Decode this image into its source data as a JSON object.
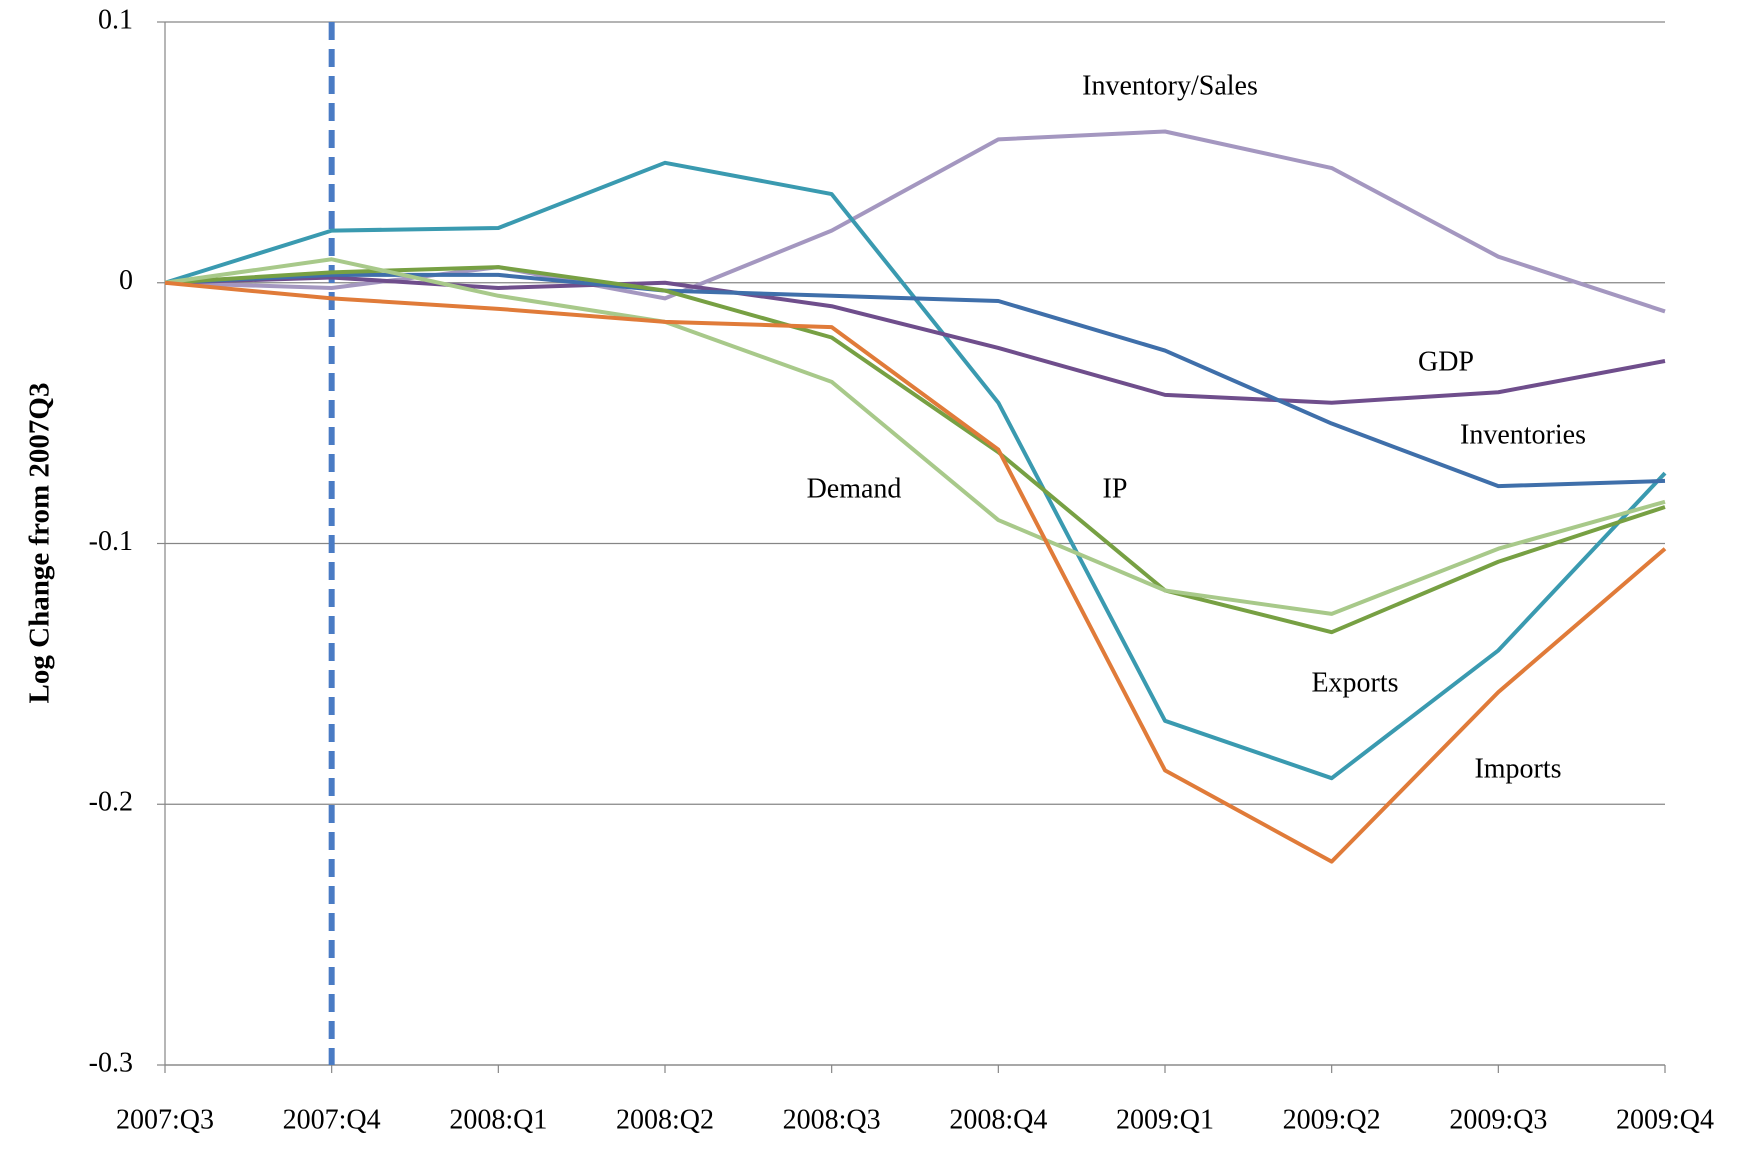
{
  "chart_data": {
    "type": "line",
    "ylabel": "Log Change from 2007Q3",
    "categories": [
      "2007:Q3",
      "2007:Q4",
      "2008:Q1",
      "2008:Q2",
      "2008:Q3",
      "2008:Q4",
      "2009:Q1",
      "2009:Q2",
      "2009:Q3",
      "2009:Q4"
    ],
    "ylim": [
      -0.3,
      0.1
    ],
    "yticks": [
      0.1,
      0,
      -0.1,
      -0.2,
      -0.3
    ],
    "grid": true,
    "series": [
      {
        "name": "Inventory/Sales",
        "color": "#a497c0",
        "values": [
          0,
          -0.002,
          0.006,
          -0.006,
          0.02,
          0.055,
          0.058,
          0.044,
          0.01,
          -0.011
        ]
      },
      {
        "name": "Exports",
        "color": "#3a9ab0",
        "values": [
          0,
          0.02,
          0.021,
          0.046,
          0.034,
          -0.046,
          -0.168,
          -0.19,
          -0.141,
          -0.073
        ]
      },
      {
        "name": "GDP",
        "color": "#6f4e8c",
        "values": [
          0,
          0.002,
          -0.002,
          0,
          -0.009,
          -0.025,
          -0.043,
          -0.046,
          -0.042,
          -0.03
        ]
      },
      {
        "name": "Inventories",
        "color": "#3f6faa",
        "values": [
          0,
          0.003,
          0.003,
          -0.003,
          -0.005,
          -0.007,
          -0.026,
          -0.054,
          -0.078,
          -0.076
        ]
      },
      {
        "name": "IP",
        "color": "#77a043",
        "values": [
          0,
          0.004,
          0.006,
          -0.003,
          -0.021,
          -0.065,
          -0.118,
          -0.134,
          -0.107,
          -0.086
        ]
      },
      {
        "name": "Demand",
        "color": "#a8c98a",
        "values": [
          0,
          0.009,
          -0.005,
          -0.015,
          -0.038,
          -0.091,
          -0.118,
          -0.127,
          -0.102,
          -0.084
        ]
      },
      {
        "name": "Imports",
        "color": "#e07b39",
        "values": [
          0,
          -0.006,
          -0.01,
          -0.015,
          -0.017,
          -0.064,
          -0.187,
          -0.222,
          -0.157,
          -0.102
        ]
      }
    ]
  }
}
